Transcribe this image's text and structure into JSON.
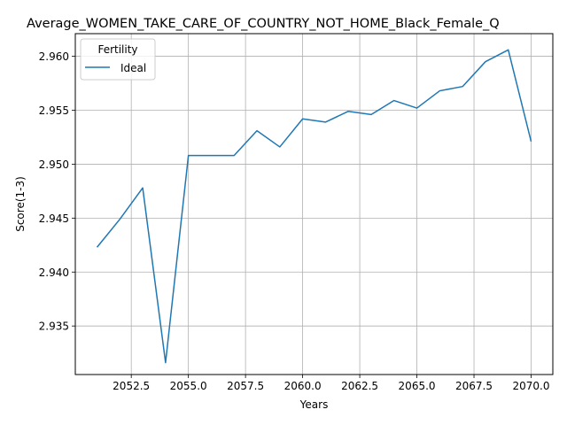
{
  "chart_data": {
    "type": "line",
    "title": "Average_WOMEN_TAKE_CARE_OF_COUNTRY_NOT_HOME_Black_Female_Q",
    "xlabel": "Years",
    "ylabel": "Score(1-3)",
    "xlim": [
      2050.05,
      2070.95
    ],
    "ylim": [
      2.9305,
      2.9621
    ],
    "x_ticks": [
      2052.5,
      2055.0,
      2057.5,
      2060.0,
      2062.5,
      2065.0,
      2067.5,
      2070.0
    ],
    "x_tick_labels": [
      "2052.5",
      "2055.0",
      "2057.5",
      "2060.0",
      "2062.5",
      "2065.0",
      "2067.5",
      "2070.0"
    ],
    "y_ticks": [
      2.935,
      2.94,
      2.945,
      2.95,
      2.955,
      2.96
    ],
    "y_tick_labels": [
      "2.935",
      "2.940",
      "2.945",
      "2.950",
      "2.955",
      "2.960"
    ],
    "grid": true,
    "legend": {
      "title": "Fertility",
      "placement": "top-left"
    },
    "series": [
      {
        "name": "Ideal",
        "color": "#1f77b4",
        "x": [
          2051,
          2052,
          2053,
          2054,
          2055,
          2056,
          2057,
          2058,
          2059,
          2060,
          2061,
          2062,
          2063,
          2064,
          2065,
          2066,
          2067,
          2068,
          2069,
          2070
        ],
        "y": [
          2.9423,
          2.9449,
          2.9478,
          2.9316,
          2.9508,
          2.9508,
          2.9508,
          2.9531,
          2.9516,
          2.9542,
          2.9539,
          2.9549,
          2.9546,
          2.9559,
          2.9552,
          2.9568,
          2.9572,
          2.9595,
          2.9606,
          2.9521
        ]
      }
    ]
  }
}
